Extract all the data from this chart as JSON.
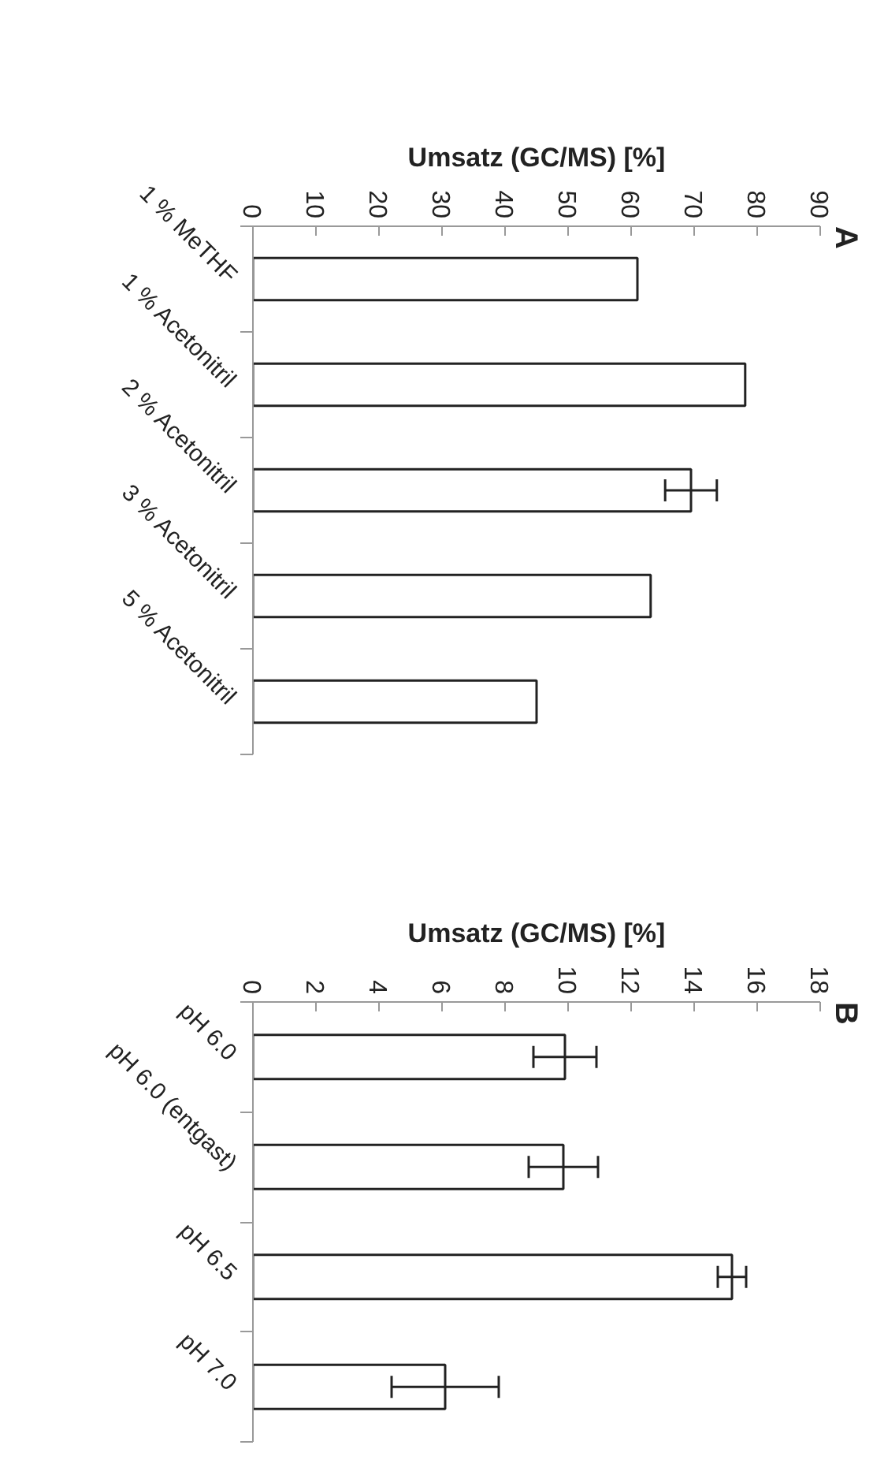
{
  "chart_data": [
    {
      "type": "bar",
      "orientation": "horizontal",
      "title": "A",
      "xlabel": "Umsatz (GC/MS) [%]",
      "categories": [
        "1 % MeTHF",
        "1 % Acetonitril",
        "2 % Acetonitril",
        "3 % Acetonitril",
        "5 % Acetonitril"
      ],
      "values": [
        61.0,
        78.1,
        69.5,
        63.1,
        45.0
      ],
      "errors": [
        null,
        null,
        4.1,
        null,
        null
      ],
      "color": "#ffffff",
      "xlim": [
        0,
        90
      ],
      "xticks": [
        0,
        10,
        20,
        30,
        40,
        50,
        60,
        70,
        80,
        90
      ],
      "grid": false
    },
    {
      "type": "bar",
      "orientation": "horizontal",
      "title": "B",
      "xlabel": "Umsatz (GC/MS) [%]",
      "categories": [
        "pH 6.0",
        "pH 6.0 (entgast)",
        "pH 6.5",
        "pH 7.0"
      ],
      "values": [
        9.9,
        9.85,
        15.2,
        6.1
      ],
      "errors": [
        1.0,
        1.1,
        0.45,
        1.7
      ],
      "color": "#ffffff",
      "xlim": [
        0,
        18
      ],
      "xticks": [
        0,
        2,
        4,
        6,
        8,
        10,
        12,
        14,
        16,
        18
      ],
      "grid": false
    }
  ]
}
